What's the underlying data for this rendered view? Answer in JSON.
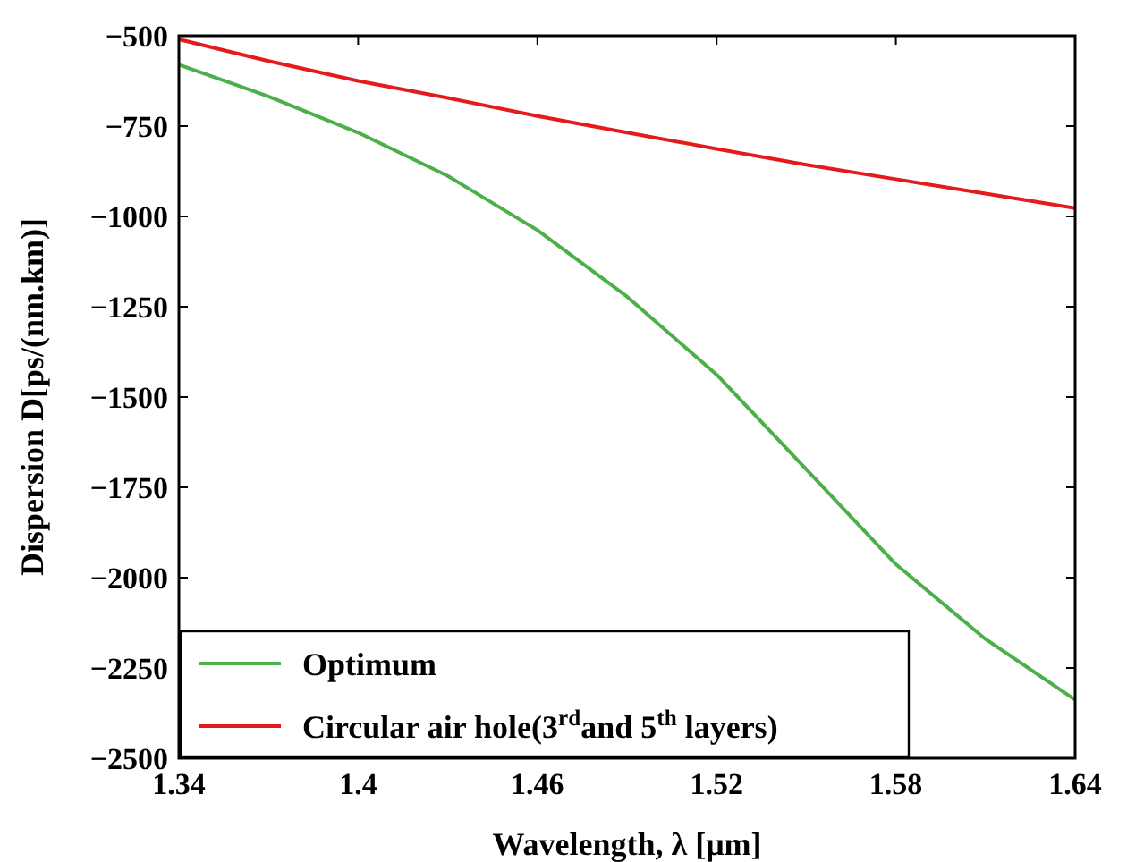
{
  "chart_data": {
    "type": "line",
    "xlabel": "Wavelength, λ [μm]",
    "ylabel": "Dispersion D[ps/(nm.km)]",
    "x": [
      1.34,
      1.37,
      1.4,
      1.43,
      1.46,
      1.49,
      1.52,
      1.55,
      1.58,
      1.61,
      1.64
    ],
    "series": [
      {
        "name": "Optimum",
        "color": "#4daf4a",
        "values": [
          -580,
          -668,
          -768,
          -888,
          -1038,
          -1222,
          -1438,
          -1700,
          -1963,
          -2170,
          -2338
        ]
      },
      {
        "name": "Circular air hole(3$^{rd}$and 5$^{th}$ layers)",
        "color": "#e41a1c",
        "values": [
          -510,
          -570,
          -625,
          -672,
          -722,
          -768,
          -813,
          -857,
          -897,
          -937,
          -977
        ]
      }
    ],
    "xlim": [
      1.34,
      1.64
    ],
    "xticks": [
      1.34,
      1.4,
      1.46,
      1.52,
      1.58,
      1.64
    ],
    "ylim": [
      -2500,
      -500
    ],
    "yticks": [
      -2500,
      -2250,
      -2000,
      -1750,
      -1500,
      -1250,
      -1000,
      -750,
      -500
    ],
    "grid": false,
    "legend": "bottom left",
    "marker": "none",
    "line_style": "solid"
  }
}
